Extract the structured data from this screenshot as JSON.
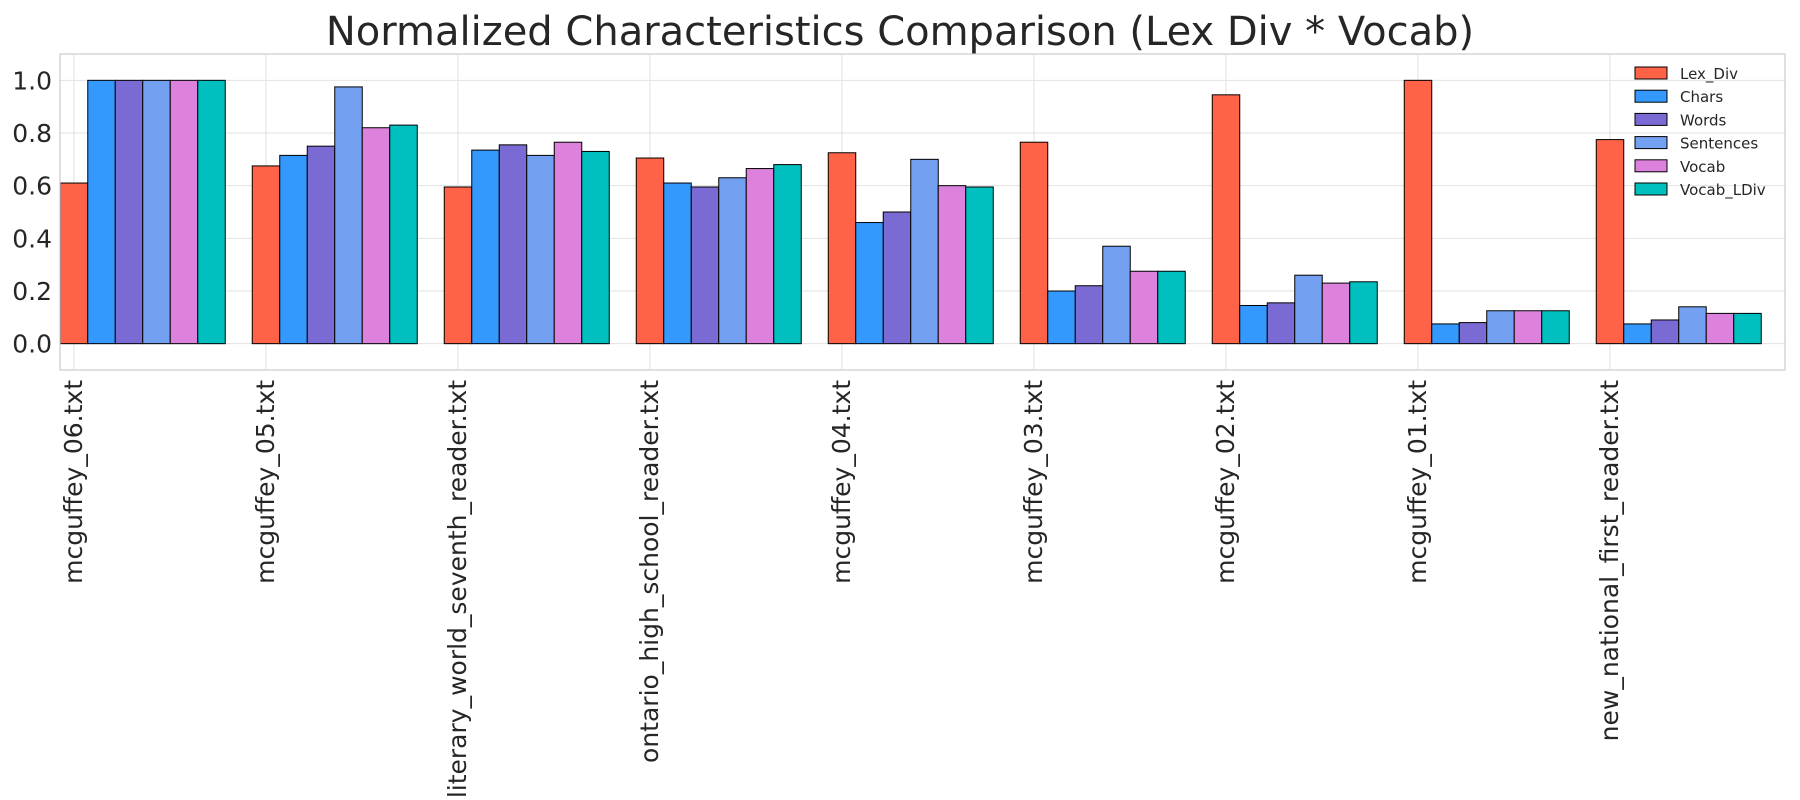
{
  "chart_data": {
    "type": "bar",
    "title": "Normalized Characteristics Comparison (Lex Div * Vocab)",
    "xlabel": "",
    "ylabel": "",
    "ylim": [
      -0.1,
      1.1
    ],
    "yticks": [
      "0.0",
      "0.2",
      "0.4",
      "0.6",
      "0.8",
      "1.0"
    ],
    "grid": true,
    "legend_position": "top-right",
    "categories": [
      "mcguffey_06.txt",
      "mcguffey_05.txt",
      "literary_world_seventh_reader.txt",
      "ontario_high_school_reader.txt",
      "mcguffey_04.txt",
      "mcguffey_03.txt",
      "mcguffey_02.txt",
      "mcguffey_01.txt",
      "new_national_first_reader.txt"
    ],
    "series": [
      {
        "name": "Lex_Div",
        "color": "#ff6347",
        "values": [
          0.61,
          0.675,
          0.595,
          0.705,
          0.725,
          0.765,
          0.945,
          1.0,
          0.775
        ]
      },
      {
        "name": "Chars",
        "color": "#3399ff",
        "values": [
          1.0,
          0.715,
          0.735,
          0.61,
          0.46,
          0.2,
          0.145,
          0.075,
          0.075
        ]
      },
      {
        "name": "Words",
        "color": "#7a6bd4",
        "values": [
          1.0,
          0.75,
          0.755,
          0.595,
          0.5,
          0.22,
          0.155,
          0.08,
          0.09
        ]
      },
      {
        "name": "Sentences",
        "color": "#73a0f0",
        "values": [
          1.0,
          0.975,
          0.715,
          0.63,
          0.7,
          0.37,
          0.26,
          0.125,
          0.14
        ]
      },
      {
        "name": "Vocab",
        "color": "#dc82dc",
        "values": [
          1.0,
          0.82,
          0.765,
          0.665,
          0.6,
          0.275,
          0.23,
          0.125,
          0.115
        ]
      },
      {
        "name": "Vocab_LDiv",
        "color": "#00bfbf",
        "values": [
          1.0,
          0.83,
          0.73,
          0.68,
          0.595,
          0.275,
          0.235,
          0.125,
          0.115
        ]
      }
    ]
  }
}
